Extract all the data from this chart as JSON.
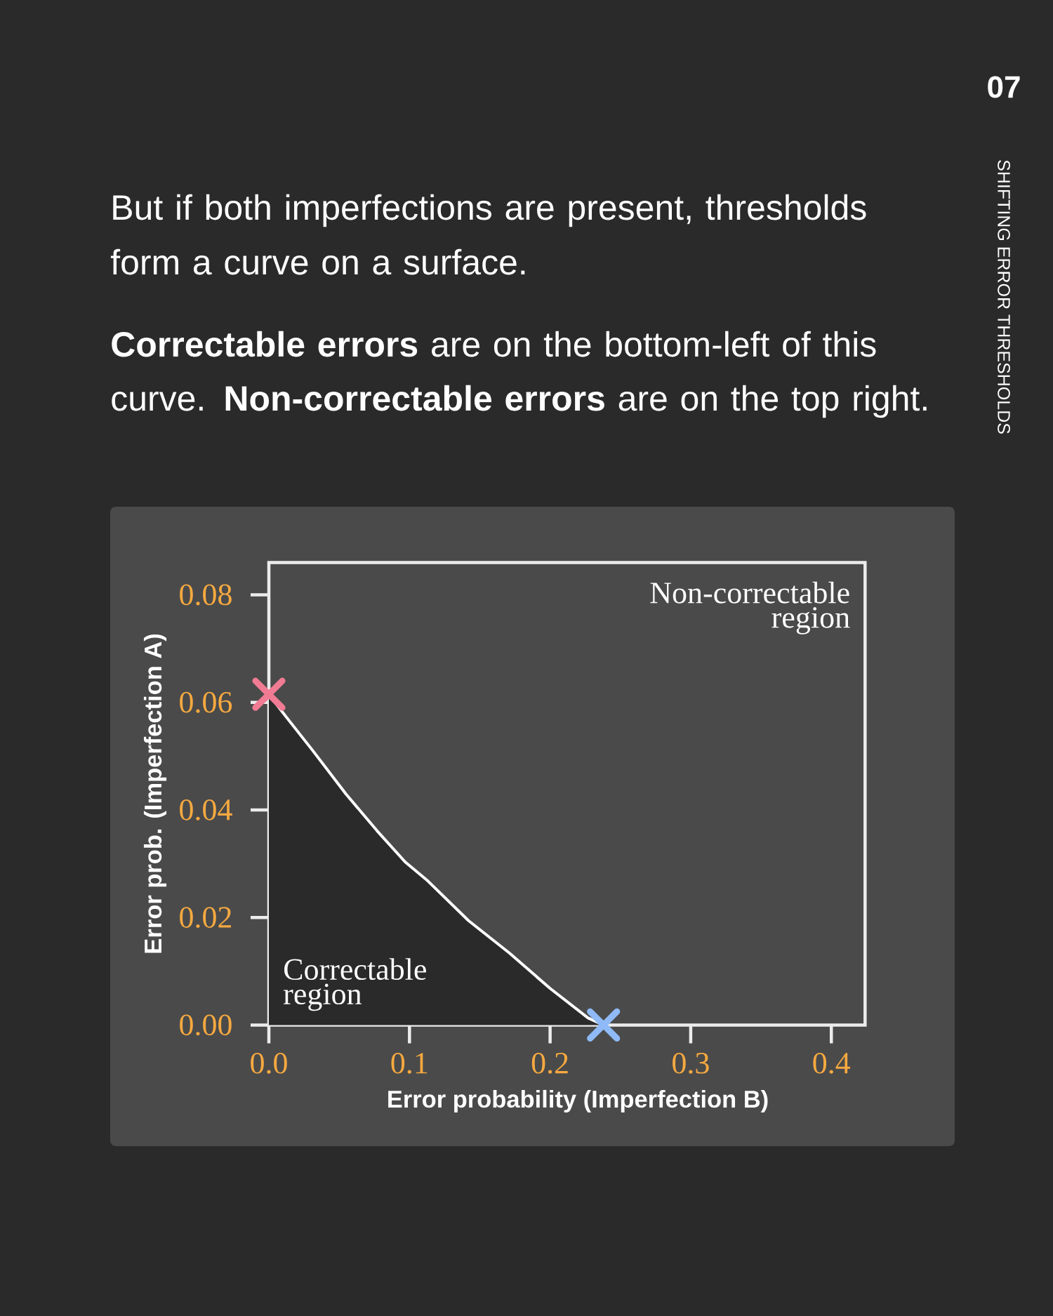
{
  "chart_data": {
    "type": "area",
    "title": "But if both imperfections are present, thresholds form a curve on a surface.",
    "subtitle": "**Correctable errors** are on the bottom-left of this curve. **Non-correctable errors** are on the top right.",
    "xlabel": "Error probability (Imperfection B)",
    "ylabel": "Error prob. (Imperfection A)",
    "series": [
      {
        "color": "#ffffff",
        "x": [
          0,
          0.012,
          0.031,
          0.055,
          0.077,
          0.097,
          0.113,
          0.142,
          0.171,
          0.2,
          0.227,
          0.238
        ],
        "values": [
          0.0615,
          0.0574,
          0.0511,
          0.0429,
          0.0361,
          0.0303,
          0.0268,
          0.0194,
          0.0134,
          0.0068,
          0.0013,
          0
        ]
      },
      {
        "type": "scatter",
        "color": "#f07b93",
        "marker": "cross",
        "x": [
          0
        ],
        "values": [
          0.0615
        ]
      },
      {
        "type": "scatter",
        "color": "#8fbaf7",
        "marker": "cross",
        "x": [
          0.238
        ],
        "values": [
          0
        ]
      }
    ],
    "xlim": [
      0,
      0.424
    ],
    "ylim": [
      0,
      0.086
    ],
    "xticks": [
      {
        "value": 0,
        "label": "0.0"
      },
      0.1,
      0.2,
      0.3,
      0.4
    ],
    "yticks": [
      {
        "value": 0,
        "label": "0.00"
      },
      0.02,
      0.04,
      0.06,
      0.08
    ],
    "annotations": [
      "Non-correctable region",
      "Correctable region",
      "07",
      "SHIFTING ERROR THRESHOLDS"
    ]
  }
}
